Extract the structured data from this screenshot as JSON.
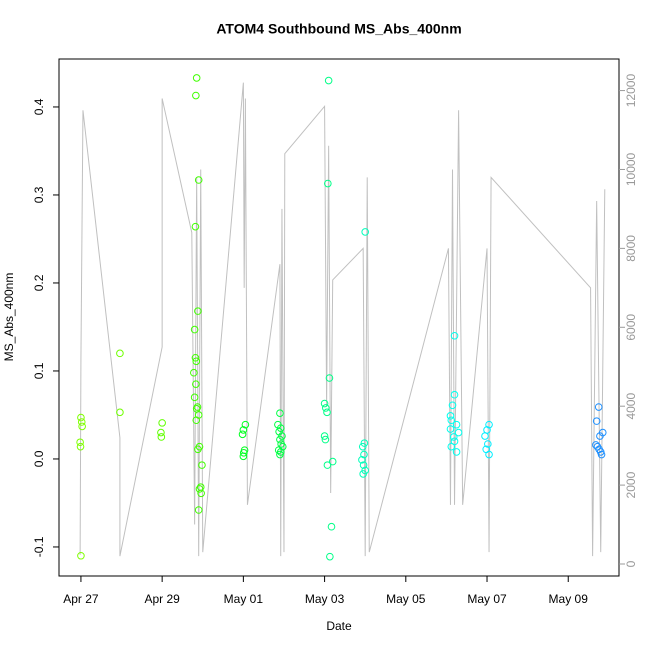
{
  "chart_data": {
    "type": "scatter",
    "title": "ATOM4 Southbound MS_Abs_400nm",
    "x_label": "Date",
    "y_label": "MS_Abs_400nm",
    "xlim": [
      -0.54,
      13.25
    ],
    "xticks": [
      {
        "value": 0,
        "label": "Apr 27"
      },
      {
        "value": 2,
        "label": "Apr 29"
      },
      {
        "value": 4,
        "label": "May 01"
      },
      {
        "value": 6,
        "label": "May 03"
      },
      {
        "value": 8,
        "label": "May 05"
      },
      {
        "value": 10,
        "label": "May 07"
      },
      {
        "value": 12,
        "label": "May 09"
      }
    ],
    "ylim": [
      -0.133,
      0.4545
    ],
    "yticks": [
      -0.1,
      {
        "value": 0,
        "label": "0.0"
      },
      0.1,
      0.2,
      0.3,
      0.4
    ],
    "y2lim": [
      -304,
      12800
    ],
    "y2ticks": [
      0,
      2000,
      4000,
      6000,
      8000,
      10000,
      12000
    ],
    "series": [
      {
        "color": "#7fff00",
        "x": [
          0,
          0.02,
          0.03,
          -0.02,
          -0.01,
          0
        ],
        "values": [
          0.047,
          0.042,
          0.037,
          0.019,
          0.014,
          -0.11
        ]
      },
      {
        "color": "#70ff00",
        "x": [
          0.96,
          0.96
        ],
        "values": [
          0.12,
          0.053
        ]
      },
      {
        "color": "#60ff00",
        "x": [
          2.0,
          1.97,
          1.98
        ],
        "values": [
          0.041,
          0.03,
          0.025
        ]
      },
      {
        "color": "#40ff00",
        "x": [
          2.85,
          2.83,
          2.9,
          2.82,
          2.88,
          2.8,
          2.82,
          2.84,
          2.78,
          2.83,
          2.8,
          2.87,
          2.85,
          2.9,
          2.84,
          2.92,
          2.88,
          2.95,
          2.92,
          2.96,
          2.9,
          2.98
        ],
        "values": [
          0.433,
          0.413,
          0.317,
          0.264,
          0.168,
          0.147,
          0.115,
          0.111,
          0.098,
          0.085,
          0.07,
          0.059,
          0.057,
          0.05,
          0.044,
          0.014,
          0.011,
          -0.032,
          -0.034,
          -0.039,
          -0.058,
          -0.007
        ]
      },
      {
        "color": "#00ff20",
        "x": [
          4.05,
          4.0,
          3.98,
          4.03,
          4.01,
          4.0
        ],
        "values": [
          0.039,
          0.033,
          0.028,
          0.01,
          0.007,
          0.003
        ]
      },
      {
        "color": "#00ff44",
        "x": [
          4.9,
          4.85,
          4.92,
          4.88,
          4.95,
          4.9,
          4.93,
          4.97,
          4.87,
          4.92,
          4.9
        ],
        "values": [
          0.052,
          0.039,
          0.035,
          0.031,
          0.026,
          0.022,
          0.017,
          0.014,
          0.01,
          0.008,
          0.005
        ]
      },
      {
        "color": "#00ff88",
        "x": [
          6.1,
          6.08,
          6.12,
          6.0,
          6.03,
          6.06,
          6.0,
          6.02,
          6.2,
          6.07,
          6.17,
          6.13
        ],
        "values": [
          0.43,
          0.313,
          0.092,
          0.063,
          0.058,
          0.053,
          0.026,
          0.022,
          -0.003,
          -0.007,
          -0.077,
          -0.111
        ]
      },
      {
        "color": "#00ffbb",
        "x": [
          7.0,
          6.98,
          6.94,
          6.97,
          6.92,
          6.96,
          7.0,
          6.95
        ],
        "values": [
          0.258,
          0.018,
          0.014,
          0.005,
          -0.001,
          -0.007,
          -0.013,
          -0.017
        ]
      },
      {
        "color": "#00ffee",
        "x": [
          9.2,
          9.2,
          9.15,
          9.1,
          9.12,
          9.25,
          9.1,
          9.3,
          9.18,
          9.2,
          9.12,
          9.25
        ],
        "values": [
          0.14,
          0.073,
          0.061,
          0.049,
          0.044,
          0.039,
          0.034,
          0.03,
          0.025,
          0.02,
          0.014,
          0.008
        ]
      },
      {
        "color": "#00eeff",
        "x": [
          10.05,
          10.0,
          9.95,
          10.02,
          9.98,
          10.05
        ],
        "values": [
          0.039,
          0.033,
          0.026,
          0.017,
          0.011,
          0.005
        ]
      },
      {
        "color": "#1e90ff",
        "x": [
          12.75,
          12.7,
          12.85,
          12.78,
          12.68,
          12.72,
          12.76,
          12.8,
          12.82
        ],
        "values": [
          0.059,
          0.043,
          0.03,
          0.026,
          0.016,
          0.014,
          0.011,
          0.008,
          0.005
        ]
      }
    ],
    "line": {
      "color": "#c0c0c0",
      "axis": "y2",
      "x": [
        -0.02,
        0,
        0.05,
        0.96,
        0.96,
        2.0,
        2.0,
        2.73,
        2.8,
        2.85,
        2.9,
        2.95,
        3.0,
        4.0,
        4.02,
        4.05,
        4.1,
        4.9,
        4.92,
        4.95,
        5.0,
        5.02,
        6.0,
        6.05,
        6.1,
        6.15,
        6.2,
        6.95,
        7.0,
        7.05,
        7.1,
        9.05,
        9.1,
        9.15,
        9.2,
        9.3,
        9.4,
        10.0,
        10.05,
        10.1,
        12.55,
        12.6,
        12.7,
        12.8,
        12.9
      ],
      "values": [
        230,
        5200,
        11500,
        3200,
        200,
        5500,
        11800,
        8400,
        1000,
        9800,
        200,
        10000,
        300,
        12200,
        7000,
        11800,
        1500,
        7600,
        200,
        9000,
        300,
        10400,
        11600,
        4000,
        10600,
        1800,
        7200,
        8000,
        200,
        9800,
        300,
        8000,
        1500,
        10000,
        1500,
        11500,
        1500,
        8000,
        300,
        9800,
        7000,
        200,
        9200,
        300,
        9500
      ]
    }
  }
}
